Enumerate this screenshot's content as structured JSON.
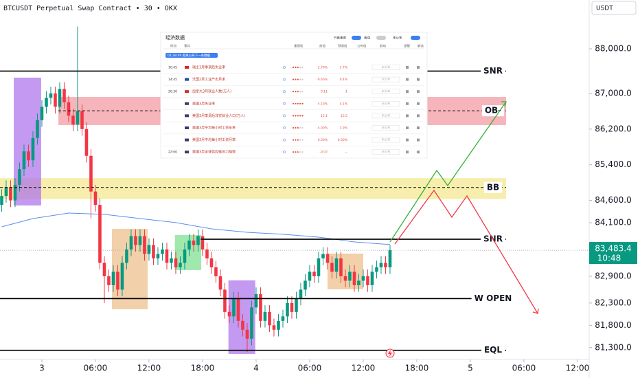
{
  "chart_data": {
    "type": "candlestick",
    "title": "BTCUSDT Perpetual Swap Contract • 30 • OKX",
    "currency": "USDT",
    "up_color": "#089981",
    "down_color": "#f23645",
    "xlim": [
      -4.69,
      61.31
    ],
    "ylim": [
      81050,
      89094
    ],
    "xticks": [
      {
        "value": 0,
        "label": "3"
      },
      {
        "value": 6,
        "label": "06:00"
      },
      {
        "value": 12,
        "label": "12:00"
      },
      {
        "value": 18,
        "label": "18:00"
      },
      {
        "value": 24,
        "label": "4"
      },
      {
        "value": 30,
        "label": "06:00"
      },
      {
        "value": 36,
        "label": "12:00"
      },
      {
        "value": 42,
        "label": "18:00"
      },
      {
        "value": 48,
        "label": "5"
      },
      {
        "value": 54,
        "label": "06:00"
      },
      {
        "value": 60,
        "label": "12:00"
      }
    ],
    "yticks": [
      {
        "value": 88000,
        "label": "88,000.0"
      },
      {
        "value": 87000,
        "label": "87,000.0"
      },
      {
        "value": 86200,
        "label": "86,200.0"
      },
      {
        "value": 85400,
        "label": "85,400.0"
      },
      {
        "value": 84600,
        "label": "84,600.0"
      },
      {
        "value": 84100,
        "label": "84,100.0"
      },
      {
        "value": 82900,
        "label": "82,900.0"
      },
      {
        "value": 82300,
        "label": "82,300.0"
      },
      {
        "value": 81800,
        "label": "81,800.0"
      },
      {
        "value": 81300,
        "label": "81,300.0"
      }
    ],
    "x": [
      -4.5,
      -4,
      -3.5,
      -3,
      -2.5,
      -2,
      -1.5,
      -1,
      -0.5,
      0,
      0.5,
      1,
      1.5,
      2,
      2.5,
      3,
      3.5,
      4,
      4.5,
      5,
      5.5,
      6,
      6.5,
      7,
      7.5,
      8,
      8.5,
      9,
      9.5,
      10,
      10.5,
      11,
      11.5,
      12,
      12.5,
      13,
      13.5,
      14,
      14.5,
      15,
      15.5,
      16,
      16.5,
      17,
      17.5,
      18,
      18.5,
      19,
      19.5,
      20,
      20.5,
      21,
      21.5,
      22,
      22.5,
      23,
      23.5,
      24,
      24.5,
      25,
      25.5,
      26,
      26.5,
      27,
      27.5,
      28,
      28.5,
      29,
      29.5,
      30,
      30.5,
      31,
      31.5,
      32,
      32.5,
      33,
      33.5,
      34,
      34.5,
      35,
      35.5,
      36,
      36.5,
      37,
      37.5,
      38,
      38.5,
      39
    ],
    "open": [
      84500,
      84700,
      84900,
      84600,
      84950,
      85300,
      85700,
      85500,
      86000,
      86400,
      86700,
      86900,
      87000,
      86700,
      87100,
      86800,
      86500,
      86300,
      86600,
      86200,
      85600,
      84800,
      84500,
      83200,
      82900,
      82700,
      83000,
      82600,
      83200,
      83500,
      83800,
      83600,
      83800,
      83400,
      83600,
      83300,
      83400,
      83500,
      83200,
      83300,
      83100,
      83200,
      83500,
      83700,
      83600,
      83800,
      83500,
      83300,
      83100,
      82900,
      82600,
      82100,
      82000,
      82400,
      81900,
      81700,
      81500,
      82200,
      82500,
      81900,
      82100,
      81800,
      81700,
      81900,
      82000,
      82300,
      82100,
      82400,
      82600,
      82800,
      83000,
      82900,
      83300,
      83400,
      83200,
      83000,
      83300,
      82900,
      82800,
      83000,
      82700,
      82800,
      82900,
      82700,
      83000,
      83100,
      83200,
      83100
    ],
    "high": [
      84850,
      85050,
      85050,
      85100,
      85450,
      85850,
      85850,
      86150,
      86550,
      86850,
      87050,
      87150,
      87150,
      87250,
      87250,
      86950,
      86650,
      88500,
      86750,
      86350,
      85750,
      84950,
      84650,
      83350,
      83050,
      83150,
      83150,
      83350,
      83650,
      83950,
      83950,
      83950,
      83950,
      83750,
      83750,
      83550,
      83650,
      83650,
      83450,
      83450,
      83350,
      83650,
      83850,
      83850,
      83950,
      83950,
      83650,
      83450,
      83250,
      83050,
      82750,
      82250,
      82550,
      82550,
      82050,
      81850,
      82350,
      82650,
      82650,
      82250,
      82250,
      81950,
      82050,
      82150,
      82450,
      82450,
      82550,
      82750,
      82950,
      83150,
      83150,
      83450,
      83550,
      83550,
      83350,
      83450,
      83450,
      83050,
      83150,
      83150,
      82950,
      83050,
      83050,
      83150,
      83250,
      83350,
      83350,
      83600
    ],
    "low": [
      84350,
      84550,
      84450,
      84450,
      84800,
      85150,
      85350,
      85350,
      85850,
      86250,
      86550,
      86750,
      86550,
      86550,
      86650,
      86350,
      86150,
      86150,
      86050,
      85450,
      84200,
      84350,
      83050,
      82300,
      82550,
      82550,
      82450,
      82450,
      83050,
      83350,
      83450,
      83450,
      83250,
      83250,
      83150,
      83150,
      83250,
      83050,
      83050,
      82950,
      82950,
      83050,
      83350,
      83450,
      83450,
      83350,
      83150,
      82950,
      82750,
      82450,
      81950,
      81850,
      81850,
      81750,
      81550,
      81200,
      81350,
      82050,
      81750,
      81750,
      81650,
      81550,
      81550,
      81750,
      81850,
      81950,
      81950,
      82250,
      82450,
      82650,
      82750,
      82750,
      83150,
      83050,
      82850,
      82850,
      82750,
      82650,
      82650,
      82550,
      82550,
      82650,
      82550,
      82550,
      82850,
      82950,
      82950,
      82950
    ],
    "close": [
      84700,
      84900,
      84600,
      84950,
      85300,
      85700,
      85500,
      86000,
      86400,
      86700,
      86900,
      87000,
      86700,
      87100,
      86800,
      86500,
      86300,
      86600,
      86200,
      85600,
      84800,
      84500,
      83200,
      82900,
      82700,
      83000,
      82600,
      83200,
      83500,
      83800,
      83600,
      83800,
      83400,
      83600,
      83300,
      83400,
      83500,
      83200,
      83300,
      83100,
      83200,
      83500,
      83700,
      83600,
      83800,
      83500,
      83300,
      83100,
      82900,
      82600,
      82100,
      82000,
      82400,
      81900,
      81700,
      81500,
      82200,
      82500,
      81900,
      82100,
      81800,
      81700,
      81900,
      82000,
      82300,
      82100,
      82400,
      82600,
      82800,
      83000,
      82900,
      83300,
      83400,
      83200,
      83000,
      83300,
      82900,
      82800,
      83000,
      82700,
      82800,
      82900,
      82700,
      83000,
      83100,
      83200,
      83100,
      83483.4
    ],
    "ma": {
      "color": "#5b8def",
      "x": [
        -4.5,
        -1,
        3,
        7,
        11,
        15,
        19,
        23,
        27,
        31,
        35,
        39
      ],
      "values": [
        84009,
        84194,
        84317,
        84287,
        84194,
        84102,
        83963,
        83886,
        83840,
        83778,
        83670,
        83609
      ]
    },
    "last_price": {
      "value": 83483.4,
      "label": "83,483.4"
    },
    "countdown": "10:48",
    "zones": [
      {
        "xlim": [
          1.85,
          52
        ],
        "ylim": [
          86290,
          86920
        ],
        "color": "rgba(236,120,130,0.55)"
      },
      {
        "xlim": [
          -4.69,
          52
        ],
        "ylim": [
          84630,
          85100
        ],
        "color": "rgba(242,226,120,0.6)"
      }
    ],
    "boxes": [
      {
        "xlim": [
          -3.15,
          -0.08
        ],
        "ylim": [
          84487,
          87353
        ],
        "color": "rgba(170,110,235,0.7)"
      },
      {
        "xlim": [
          20.9,
          23.9
        ],
        "ylim": [
          81159,
          82807
        ],
        "color": "rgba(170,110,235,0.7)"
      },
      {
        "xlim": [
          7.85,
          11.85
        ],
        "ylim": [
          82160,
          83963
        ],
        "color": "rgba(232,170,100,0.55)"
      },
      {
        "xlim": [
          32,
          36
        ],
        "ylim": [
          82607,
          83408
        ],
        "color": "rgba(232,170,100,0.55)"
      },
      {
        "xlim": [
          14.9,
          17.85
        ],
        "ylim": [
          83039,
          83824
        ],
        "color": "rgba(110,220,130,0.65)"
      }
    ],
    "levels": [
      {
        "label": "SNR",
        "value": 87500,
        "style": "solid",
        "xlim": [
          -4.69,
          52
        ]
      },
      {
        "label": "OB-",
        "value": 86610,
        "style": "dashed",
        "xlim": [
          1.85,
          52
        ]
      },
      {
        "label": "BB",
        "value": 84890,
        "style": "dashed",
        "xlim": [
          -4.69,
          52
        ]
      },
      {
        "label": "SNR",
        "value": 83730,
        "style": "solid",
        "xlim": [
          17.8,
          52
        ]
      },
      {
        "label": "W OPEN",
        "value": 82400,
        "style": "solid",
        "xlim": [
          -4.69,
          52
        ]
      },
      {
        "label": "EQL",
        "value": 81240,
        "style": "solid",
        "xlim": [
          -4.69,
          52
        ]
      }
    ]
  },
  "calendar": {
    "title": "经济数据",
    "toggles": [
      "只看重要",
      "看涨",
      "未公布"
    ],
    "banner": "01:28:49 距离公布下一条数据",
    "headers": [
      "时间",
      "事件",
      "重要性",
      "前值",
      "预测值",
      "公布值",
      "影响",
      "提醒",
      "解读"
    ],
    "rows": [
      {
        "time": "10:45",
        "event": "瑞士3月季调后失业率",
        "prev": "2.70%",
        "forecast": "2.7%",
        "actual": "未公布"
      },
      {
        "time": "14:45",
        "event": "法国2月工业产出月率",
        "prev": "-0.60%",
        "forecast": "0.4%",
        "actual": "未公布"
      },
      {
        "time": "20:30",
        "event": "加拿大3月就业人数(万人)",
        "prev": "0.11",
        "forecast": "1",
        "actual": "未公布"
      },
      {
        "time": null,
        "event": "美国3月失业率",
        "prev": "4.10%",
        "forecast": "4.1%",
        "actual": "未公布"
      },
      {
        "time": null,
        "event": "美国3月季调后非农就业人口(万人)",
        "prev": "15.1",
        "forecast": "13.5",
        "actual": "未公布"
      },
      {
        "time": null,
        "event": "美国3月平均每小时工资年率",
        "prev": "4.00%",
        "forecast": "3.9%",
        "actual": "未公布"
      },
      {
        "time": null,
        "event": "美国3月平均每小时工资月率",
        "prev": "0.30%",
        "forecast": "0.30%",
        "actual": "未公布"
      },
      {
        "time": "22:00",
        "event": "美国3月全球供应链压力指数",
        "prev": "-0.07",
        "forecast": "--",
        "actual": "未公布"
      }
    ]
  }
}
